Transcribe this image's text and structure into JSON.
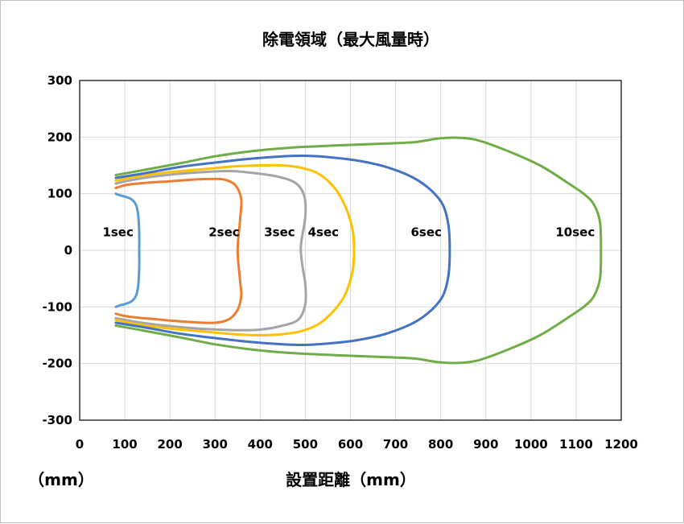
{
  "chart_data": {
    "type": "line",
    "title": "除電領域（最大風量時）",
    "xlabel": "設置距離（mm）",
    "unit_label": "（mm）",
    "xlim": [
      0,
      1200
    ],
    "ylim": [
      -300,
      300
    ],
    "xticks": [
      0,
      100,
      200,
      300,
      400,
      500,
      600,
      700,
      800,
      900,
      1000,
      1100,
      1200
    ],
    "yticks": [
      300,
      200,
      100,
      0,
      -100,
      -200,
      -300
    ],
    "grid": true,
    "legend": "none",
    "series": [
      {
        "name": "1sec",
        "color": "#5B9BD5",
        "label_at": [
          85,
          25
        ],
        "points": [
          [
            80,
            100
          ],
          [
            90,
            97
          ],
          [
            100,
            95
          ],
          [
            115,
            90
          ],
          [
            125,
            80
          ],
          [
            130,
            60
          ],
          [
            132,
            30
          ],
          [
            132,
            0
          ],
          [
            132,
            -30
          ],
          [
            130,
            -60
          ],
          [
            125,
            -80
          ],
          [
            115,
            -90
          ],
          [
            100,
            -95
          ],
          [
            90,
            -97
          ],
          [
            80,
            -100
          ]
        ]
      },
      {
        "name": "2sec",
        "color": "#ED7D31",
        "label_at": [
          320,
          25
        ],
        "points": [
          [
            80,
            110
          ],
          [
            100,
            115
          ],
          [
            130,
            118
          ],
          [
            160,
            120
          ],
          [
            200,
            122
          ],
          [
            250,
            125
          ],
          [
            290,
            126
          ],
          [
            320,
            125
          ],
          [
            345,
            115
          ],
          [
            358,
            90
          ],
          [
            355,
            50
          ],
          [
            350,
            0
          ],
          [
            355,
            -50
          ],
          [
            358,
            -80
          ],
          [
            350,
            -105
          ],
          [
            330,
            -122
          ],
          [
            300,
            -128
          ],
          [
            250,
            -127
          ],
          [
            200,
            -124
          ],
          [
            160,
            -121
          ],
          [
            130,
            -119
          ],
          [
            100,
            -116
          ],
          [
            80,
            -112
          ]
        ]
      },
      {
        "name": "3sec",
        "color": "#A5A5A5",
        "label_at": [
          443,
          25
        ],
        "points": [
          [
            80,
            118
          ],
          [
            120,
            125
          ],
          [
            180,
            132
          ],
          [
            250,
            137
          ],
          [
            330,
            140
          ],
          [
            380,
            137
          ],
          [
            440,
            130
          ],
          [
            480,
            118
          ],
          [
            498,
            95
          ],
          [
            500,
            60
          ],
          [
            492,
            20
          ],
          [
            490,
            0
          ],
          [
            494,
            -30
          ],
          [
            500,
            -60
          ],
          [
            500,
            -95
          ],
          [
            485,
            -122
          ],
          [
            450,
            -133
          ],
          [
            400,
            -140
          ],
          [
            340,
            -141
          ],
          [
            260,
            -138
          ],
          [
            190,
            -133
          ],
          [
            130,
            -127
          ],
          [
            80,
            -120
          ]
        ]
      },
      {
        "name": "4sec",
        "color": "#FFC000",
        "label_at": [
          540,
          25
        ],
        "points": [
          [
            80,
            123
          ],
          [
            130,
            131
          ],
          [
            200,
            138
          ],
          [
            270,
            143
          ],
          [
            340,
            148
          ],
          [
            400,
            150
          ],
          [
            450,
            150
          ],
          [
            490,
            146
          ],
          [
            530,
            135
          ],
          [
            565,
            110
          ],
          [
            590,
            75
          ],
          [
            605,
            35
          ],
          [
            608,
            0
          ],
          [
            605,
            -35
          ],
          [
            590,
            -75
          ],
          [
            565,
            -105
          ],
          [
            530,
            -130
          ],
          [
            490,
            -143
          ],
          [
            450,
            -148
          ],
          [
            400,
            -150
          ],
          [
            340,
            -148
          ],
          [
            270,
            -143
          ],
          [
            200,
            -138
          ],
          [
            130,
            -131
          ],
          [
            80,
            -123
          ]
        ]
      },
      {
        "name": "6sec",
        "color": "#4472C4",
        "label_at": [
          768,
          25
        ],
        "points": [
          [
            80,
            128
          ],
          [
            150,
            137
          ],
          [
            220,
            147
          ],
          [
            300,
            155
          ],
          [
            380,
            162
          ],
          [
            450,
            166
          ],
          [
            500,
            167
          ],
          [
            560,
            164
          ],
          [
            620,
            158
          ],
          [
            680,
            147
          ],
          [
            740,
            128
          ],
          [
            780,
            105
          ],
          [
            805,
            80
          ],
          [
            817,
            45
          ],
          [
            820,
            0
          ],
          [
            817,
            -45
          ],
          [
            805,
            -80
          ],
          [
            780,
            -105
          ],
          [
            740,
            -128
          ],
          [
            680,
            -147
          ],
          [
            620,
            -158
          ],
          [
            560,
            -164
          ],
          [
            500,
            -167
          ],
          [
            450,
            -166
          ],
          [
            380,
            -162
          ],
          [
            300,
            -155
          ],
          [
            220,
            -147
          ],
          [
            150,
            -137
          ],
          [
            80,
            -128
          ]
        ]
      },
      {
        "name": "10sec",
        "color": "#70AD47",
        "label_at": [
          1098,
          25
        ],
        "points": [
          [
            80,
            133
          ],
          [
            150,
            143
          ],
          [
            230,
            155
          ],
          [
            300,
            166
          ],
          [
            380,
            175
          ],
          [
            460,
            181
          ],
          [
            560,
            185
          ],
          [
            660,
            188
          ],
          [
            740,
            191
          ],
          [
            790,
            197
          ],
          [
            830,
            199
          ],
          [
            880,
            195
          ],
          [
            950,
            175
          ],
          [
            1020,
            150
          ],
          [
            1080,
            120
          ],
          [
            1120,
            98
          ],
          [
            1140,
            80
          ],
          [
            1153,
            50
          ],
          [
            1155,
            0
          ],
          [
            1153,
            -50
          ],
          [
            1140,
            -80
          ],
          [
            1120,
            -98
          ],
          [
            1080,
            -120
          ],
          [
            1020,
            -150
          ],
          [
            950,
            -175
          ],
          [
            880,
            -195
          ],
          [
            830,
            -199
          ],
          [
            790,
            -197
          ],
          [
            740,
            -191
          ],
          [
            660,
            -188
          ],
          [
            560,
            -185
          ],
          [
            460,
            -181
          ],
          [
            380,
            -175
          ],
          [
            300,
            -166
          ],
          [
            230,
            -155
          ],
          [
            150,
            -143
          ],
          [
            80,
            -133
          ]
        ]
      }
    ]
  }
}
